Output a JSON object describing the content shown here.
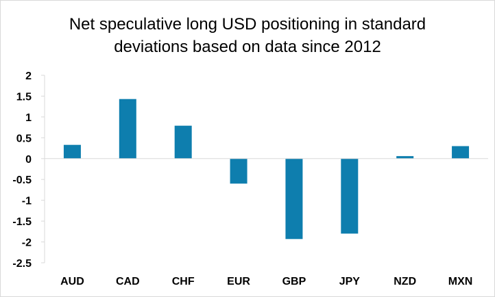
{
  "chart_data": {
    "type": "bar",
    "title_lines": [
      "Net speculative long USD positioning in standard",
      "deviations based on data since 2012"
    ],
    "categories": [
      "AUD",
      "CAD",
      "CHF",
      "EUR",
      "GBP",
      "JPY",
      "NZD",
      "MXN"
    ],
    "values": [
      0.33,
      1.43,
      0.79,
      -0.6,
      -1.93,
      -1.8,
      0.06,
      0.3
    ],
    "ylim": [
      -2.5,
      2
    ],
    "yticks": [
      "2",
      "1.5",
      "1",
      "0.5",
      "0",
      "-0.5",
      "-1",
      "-1.5",
      "-2",
      "-2.5"
    ],
    "xlabel": "",
    "ylabel": "",
    "grid": false,
    "legend": "none",
    "bar_color": "#0E7EAE",
    "axis_color": "#d9d9d9"
  }
}
